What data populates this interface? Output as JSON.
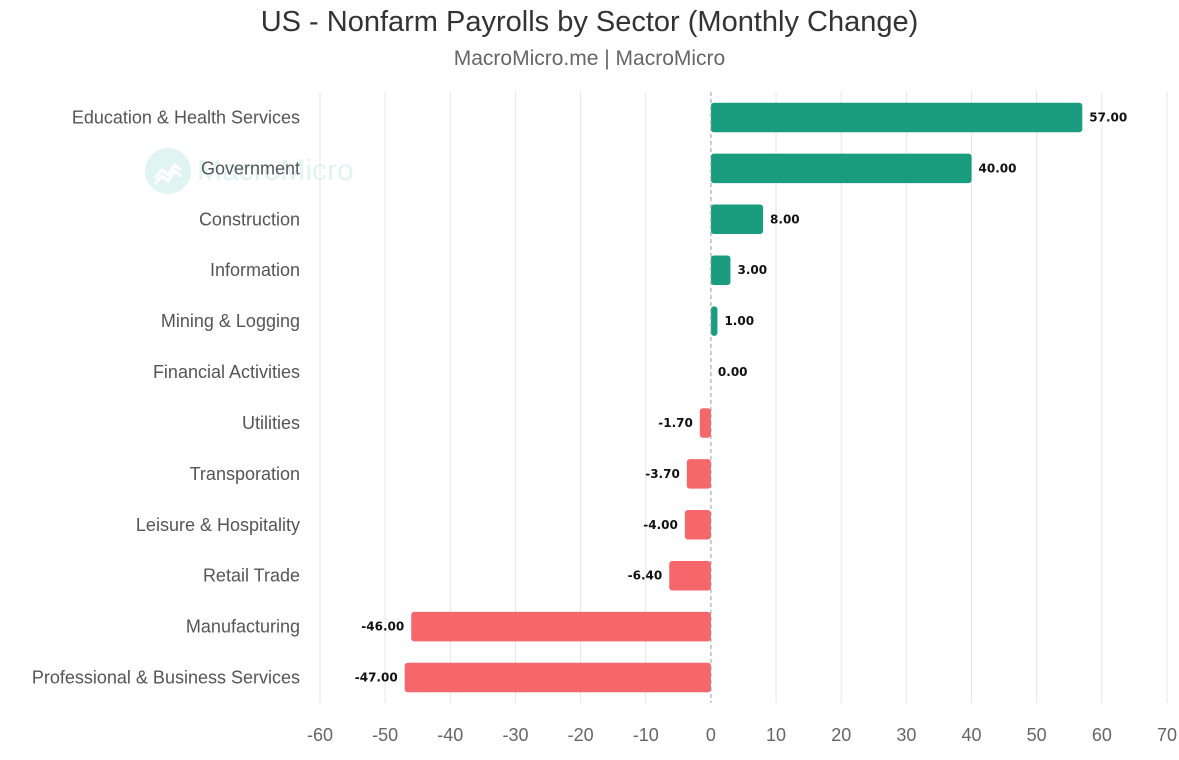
{
  "header": {
    "title": "US - Nonfarm Payrolls by Sector (Monthly Change)",
    "subtitle": "MacroMicro.me | MacroMicro"
  },
  "watermark": {
    "text": "MacroMicro",
    "icon": "macromicro-logo-icon"
  },
  "colors": {
    "positive": "#1a9d7f",
    "negative": "#f6676b",
    "grid": "#e6e6e6",
    "zero_line": "#999999"
  },
  "chart_data": {
    "type": "bar",
    "orientation": "horizontal",
    "title": "US - Nonfarm Payrolls by Sector (Monthly Change)",
    "subtitle": "MacroMicro.me | MacroMicro",
    "categories": [
      "Education & Health Services",
      "Government",
      "Construction",
      "Information",
      "Mining & Logging",
      "Financial Activities",
      "Utilities",
      "Transporation",
      "Leisure & Hospitality",
      "Retail Trade",
      "Manufacturing",
      "Professional & Business Services"
    ],
    "values": [
      57,
      40,
      8,
      3,
      1,
      0,
      -1.7,
      -3.7,
      -4,
      -6.4,
      -46,
      -47
    ],
    "data_labels": [
      "57.00",
      "40.00",
      "8.00",
      "3.00",
      "1.00",
      "0.00",
      "-1.70",
      "-3.70",
      "-4.00",
      "-6.40",
      "-46.00",
      "-47.00"
    ],
    "xlim": [
      -60,
      70
    ],
    "xticks": [
      -60,
      -50,
      -40,
      -30,
      -20,
      -10,
      0,
      10,
      20,
      30,
      40,
      50,
      60,
      70
    ],
    "xlabel": "",
    "ylabel": "",
    "grid": true
  }
}
